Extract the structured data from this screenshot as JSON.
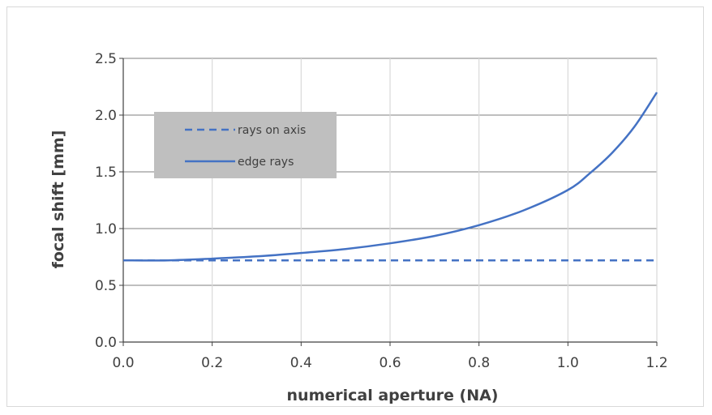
{
  "chart_data": {
    "type": "line",
    "xlabel": "numerical aperture (NA)",
    "ylabel": "focal shift [mm]",
    "xlim": [
      0,
      1.2
    ],
    "ylim": [
      0,
      2.5
    ],
    "x_ticks": [
      "0.0",
      "0.2",
      "0.4",
      "0.6",
      "0.8",
      "1.0",
      "1.2"
    ],
    "y_ticks": [
      "0.0",
      "0.5",
      "1.0",
      "1.5",
      "2.0",
      "2.5"
    ],
    "grid": true,
    "legend_position": "upper-left",
    "legend_background": "#bfbfbf",
    "series": [
      {
        "name": "rays on axis",
        "style": "dashed",
        "color": "#4472c4",
        "x": [
          0.0,
          1.2
        ],
        "y": [
          0.72,
          0.72
        ]
      },
      {
        "name": "edge rays",
        "style": "solid",
        "color": "#4472c4",
        "x": [
          0.0,
          0.1,
          0.2,
          0.3,
          0.4,
          0.5,
          0.6,
          0.7,
          0.8,
          0.9,
          1.0,
          1.05,
          1.1,
          1.15,
          1.2
        ],
        "y": [
          0.72,
          0.72,
          0.735,
          0.755,
          0.785,
          0.82,
          0.87,
          0.935,
          1.03,
          1.16,
          1.34,
          1.49,
          1.67,
          1.9,
          2.2
        ]
      }
    ]
  }
}
